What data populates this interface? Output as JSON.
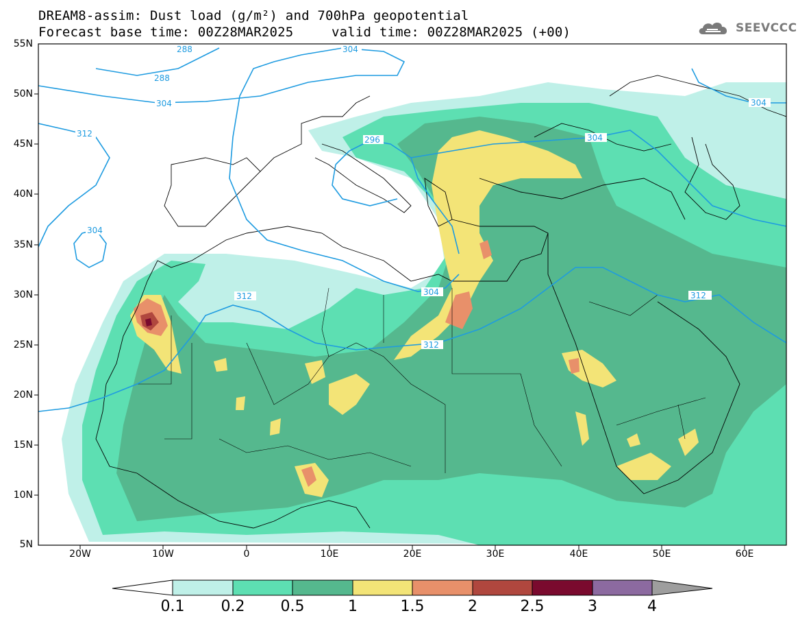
{
  "title": {
    "line1": "DREAM8-assim: Dust load (g/m²) and 700hPa geopotential",
    "base_time": "Forecast base time: 00Z28MAR2025",
    "valid_time": "valid time: 00Z28MAR2025 (+00)"
  },
  "logo": {
    "icon": "cloud-logo-icon",
    "text": "SEEVCCC"
  },
  "map": {
    "lon_range": [
      -25,
      65
    ],
    "lat_range": [
      5,
      55
    ],
    "lat_labels": [
      "55N",
      "50N",
      "45N",
      "40N",
      "35N",
      "30N",
      "25N",
      "20N",
      "15N",
      "10N",
      "5N"
    ],
    "lon_labels": [
      "20W",
      "10W",
      "0",
      "10E",
      "20E",
      "30E",
      "40E",
      "50E",
      "60E"
    ],
    "contour_labels": [
      "288",
      "304",
      "288",
      "304",
      "312",
      "296",
      "304",
      "304",
      "304",
      "312",
      "304",
      "312",
      "312"
    ]
  },
  "colorbar": {
    "labels": [
      "0.1",
      "0.2",
      "0.5",
      "1",
      "1.5",
      "2",
      "2.5",
      "3",
      "4"
    ],
    "colors": [
      "#ffffff",
      "#bff0e8",
      "#5ddfb2",
      "#55b88e",
      "#f3e477",
      "#e8906a",
      "#b0473e",
      "#7a0a2e",
      "#8c6aa0",
      "#9e9e9e"
    ]
  }
}
